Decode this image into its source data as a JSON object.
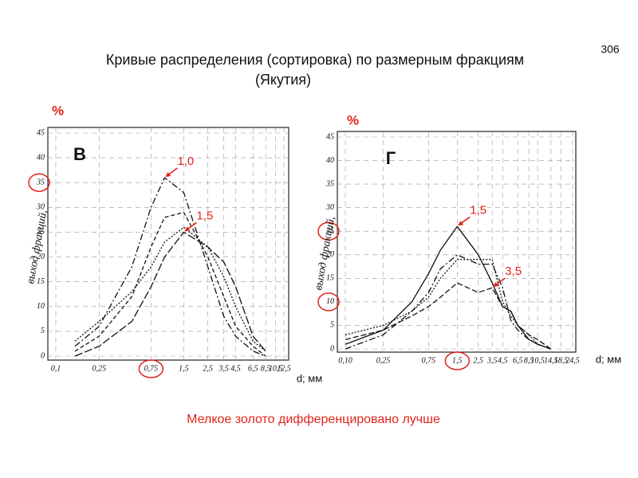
{
  "page_number": "306",
  "title": "Кривые распределения (сортировка) по размерным фракциям",
  "subtitle": "(Якутия)",
  "note": "Мелкое золото дифференцировано лучше",
  "chart_data": [
    {
      "type": "line",
      "panel_label": "В",
      "unit": "%",
      "ylabel": "выход фракций,",
      "xlabel": "d; мм",
      "xlog": true,
      "grid": true,
      "color": "#111111",
      "annotation_color": "#e2231a",
      "xlim": [
        0.1,
        12.5
      ],
      "xticks": [
        {
          "value": 0.1,
          "label": "0,1"
        },
        {
          "value": 0.25,
          "label": "0,25"
        },
        {
          "value": 0.75,
          "label": "0,75",
          "circled": true
        },
        {
          "value": 1.5,
          "label": "1,5"
        },
        {
          "value": 2.5,
          "label": "2,5"
        },
        {
          "value": 3.5,
          "label": "3,5"
        },
        {
          "value": 4.5,
          "label": "4,5"
        },
        {
          "value": 6.5,
          "label": "6,5"
        },
        {
          "value": 8.5,
          "label": "8,5"
        },
        {
          "value": 10.5,
          "label": "10,5"
        },
        {
          "value": 12.5,
          "label": "12,5"
        }
      ],
      "ylim": [
        0,
        45
      ],
      "yticks": [
        0,
        5,
        10,
        15,
        20,
        25,
        30,
        {
          "value": 35,
          "label": "35",
          "circled": true
        },
        40,
        45
      ],
      "x": [
        0.15,
        0.25,
        0.5,
        0.75,
        1,
        1.5,
        2.5,
        3.5,
        4.5,
        6.5,
        8.5
      ],
      "series": [
        {
          "dash": "8 3 2 3",
          "values": [
            2,
            6,
            18,
            30,
            36,
            33,
            18,
            8,
            4,
            1,
            0
          ]
        },
        {
          "dash": "5 3",
          "values": [
            1,
            4,
            12,
            22,
            28,
            29,
            20,
            12,
            6,
            2,
            0
          ]
        },
        {
          "dash": "2 2",
          "values": [
            3,
            7,
            13,
            18,
            23,
            26,
            22,
            16,
            10,
            3,
            1
          ]
        },
        {
          "dash": "10 3",
          "values": [
            0,
            2,
            7,
            14,
            20,
            25,
            22,
            19,
            14,
            4,
            1
          ]
        }
      ],
      "annotations": [
        {
          "text": "1,0",
          "x": 1,
          "y": 36
        },
        {
          "text": "1,5",
          "x": 1.5,
          "y": 25
        }
      ]
    },
    {
      "type": "line",
      "panel_label": "Г",
      "unit": "%",
      "ylabel": "выход фракций,",
      "xlabel": "d; мм",
      "xlog": true,
      "grid": true,
      "color": "#111111",
      "annotation_color": "#e2231a",
      "xlim": [
        0.1,
        24.5
      ],
      "xticks": [
        {
          "value": 0.1,
          "label": "0,10"
        },
        {
          "value": 0.25,
          "label": "0,25"
        },
        {
          "value": 0.75,
          "label": "0,75"
        },
        {
          "value": 1.5,
          "label": "1,5",
          "circled": true
        },
        {
          "value": 2.5,
          "label": "2,5"
        },
        {
          "value": 3.5,
          "label": "3,5"
        },
        {
          "value": 4.5,
          "label": "4,5"
        },
        {
          "value": 6.5,
          "label": "6,5"
        },
        {
          "value": 8.5,
          "label": "8,5"
        },
        {
          "value": 10.5,
          "label": "10,5"
        },
        {
          "value": 14.5,
          "label": "14,5"
        },
        {
          "value": 18.5,
          "label": "18,5"
        },
        {
          "value": 24.5,
          "label": "24,5"
        }
      ],
      "ylim": [
        0,
        45
      ],
      "yticks": [
        0,
        5,
        {
          "value": 10,
          "label": "10",
          "circled": true
        },
        15,
        20,
        {
          "value": 25,
          "label": "25",
          "circled": true
        },
        30,
        35,
        40,
        45
      ],
      "x": [
        0.1,
        0.25,
        0.5,
        0.75,
        1,
        1.5,
        2.5,
        3.5,
        4.5,
        5.5,
        6.5,
        8.5,
        10.5,
        14.5
      ],
      "series": [
        {
          "dash": "none",
          "values": [
            1,
            4,
            10,
            16,
            21,
            26,
            20,
            14,
            9,
            8,
            5,
            2,
            1,
            0
          ]
        },
        {
          "dash": "8 3 2 3",
          "values": [
            0,
            3,
            8,
            12,
            17,
            20,
            18,
            18,
            13,
            6,
            4,
            2,
            1,
            0
          ]
        },
        {
          "dash": "2 2",
          "values": [
            3,
            5,
            8,
            11,
            15,
            19,
            19,
            19,
            10,
            7,
            5,
            3,
            1,
            0
          ]
        },
        {
          "dash": "7 3",
          "values": [
            2,
            4,
            7,
            9,
            11,
            14,
            12,
            13,
            9,
            8,
            5,
            3,
            2,
            0
          ]
        }
      ],
      "annotations": [
        {
          "text": "1,5",
          "x": 1.5,
          "y": 26
        },
        {
          "text": "3,5",
          "x": 3.5,
          "y": 13
        }
      ]
    }
  ]
}
